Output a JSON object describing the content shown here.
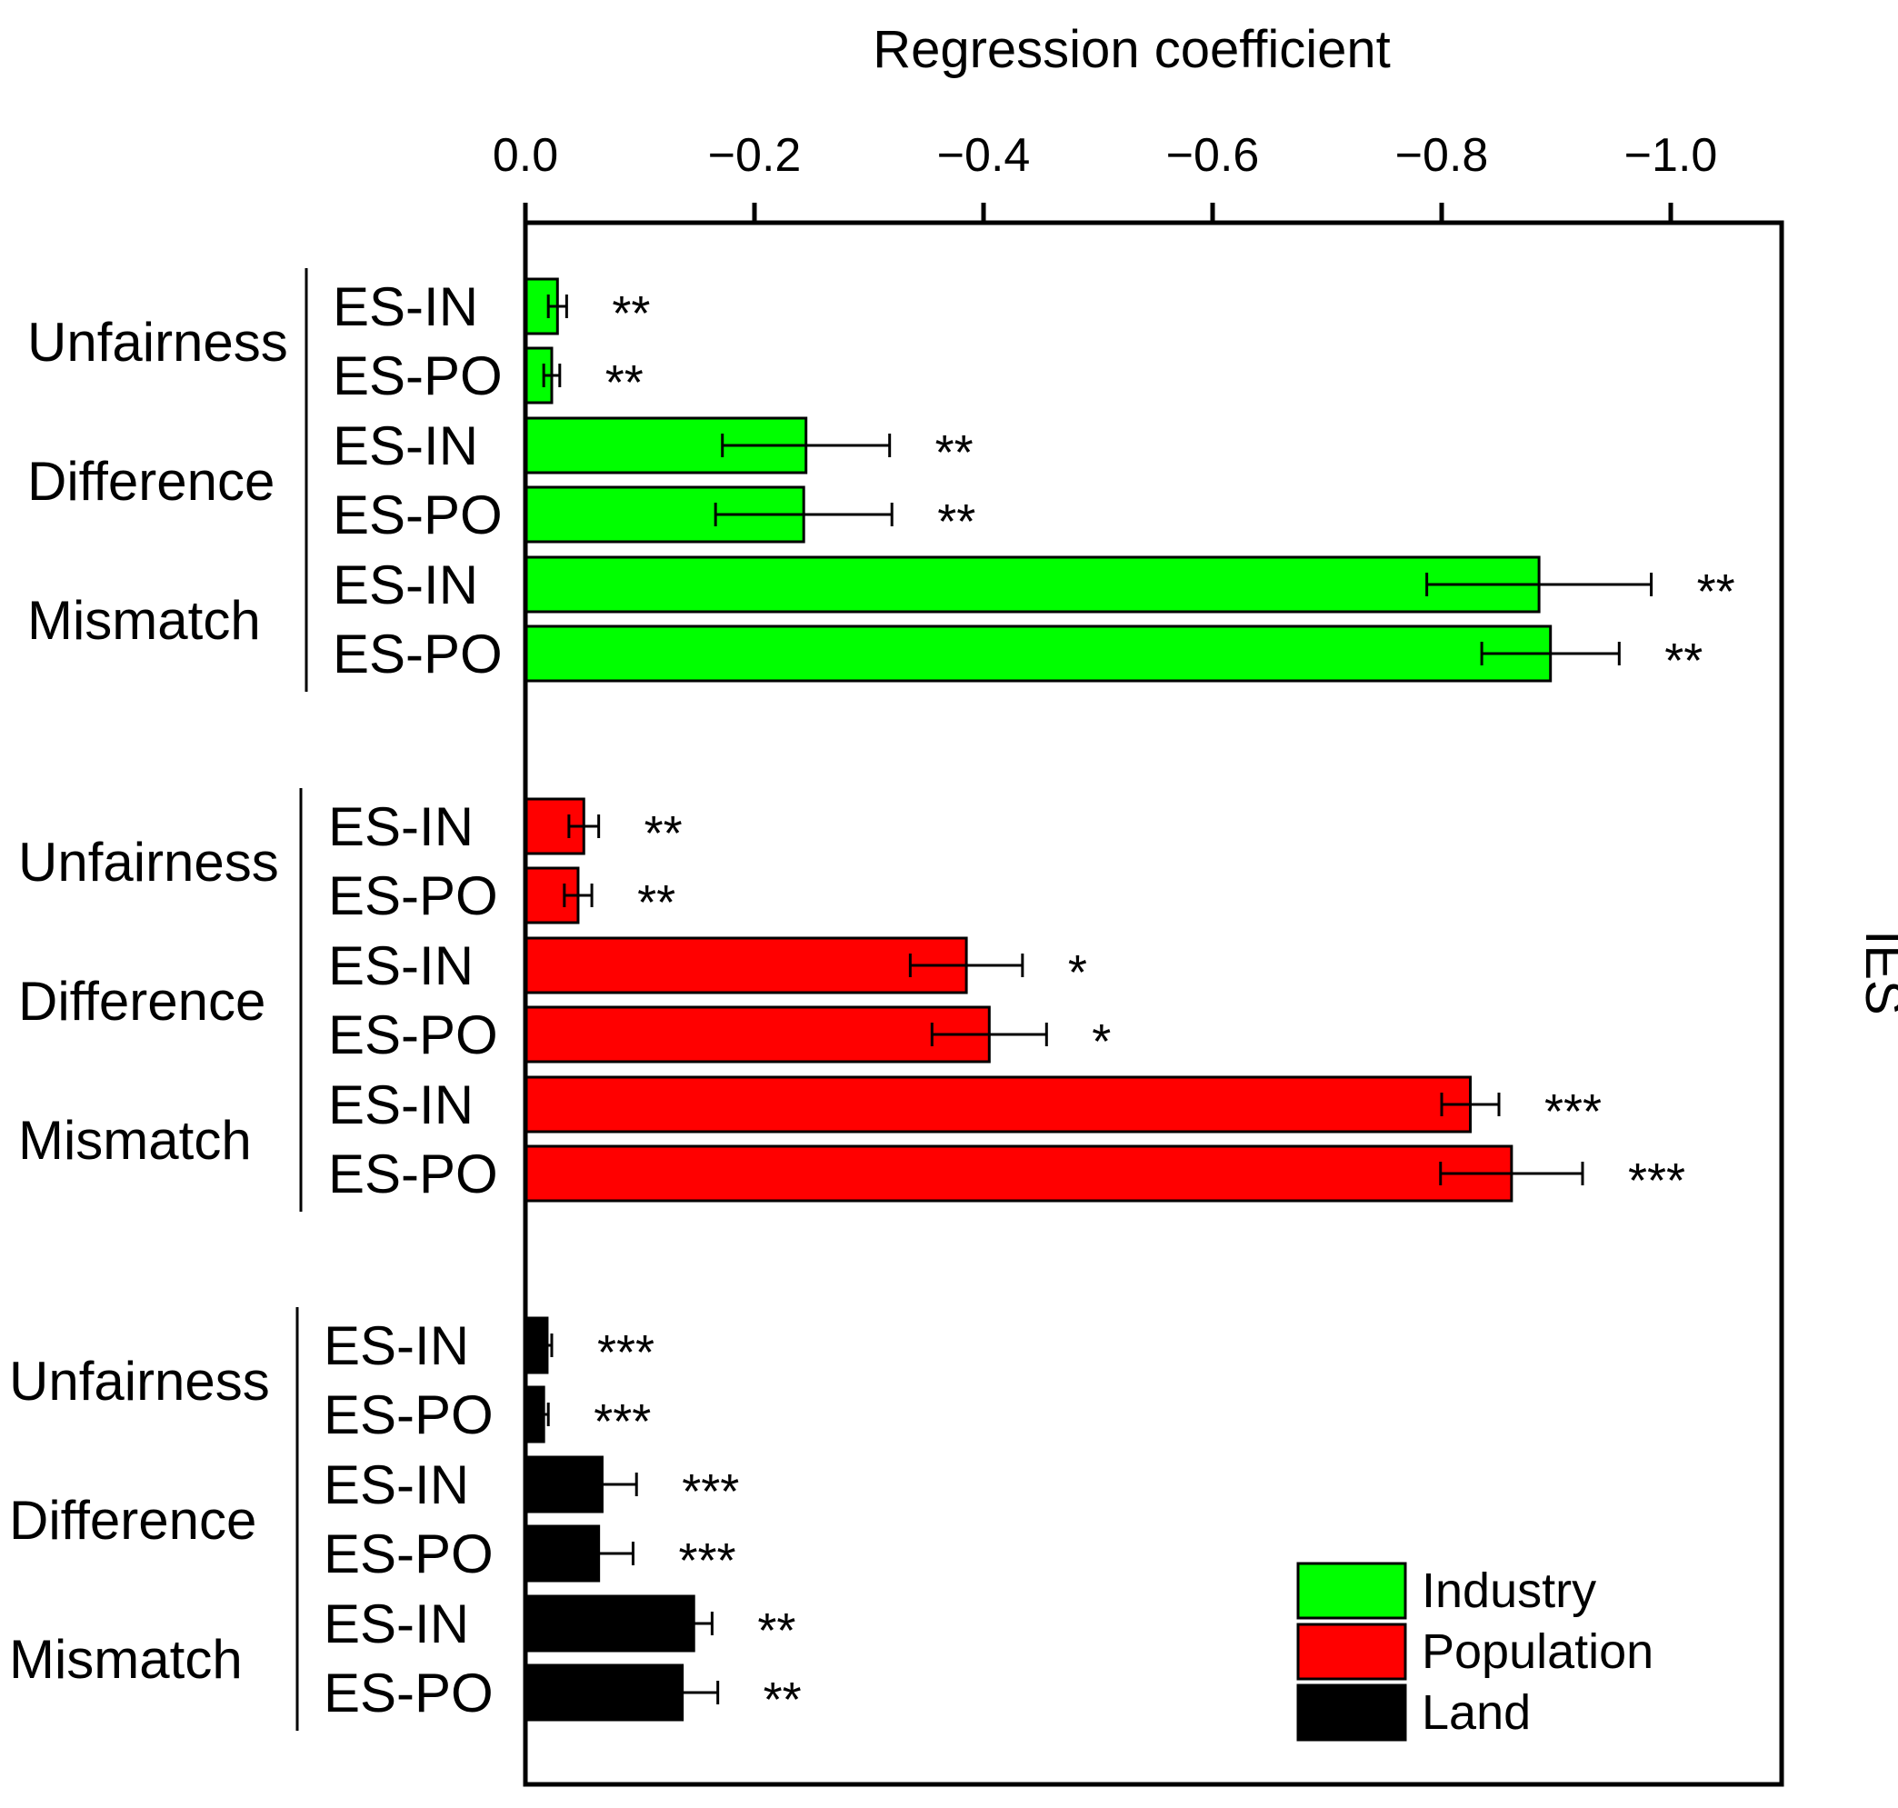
{
  "chart_data": {
    "type": "bar",
    "orientation": "horizontal",
    "title": "",
    "xlabel": "Regression coefficient",
    "ylabel": "IES",
    "xlim": [
      0.0,
      -1.1
    ],
    "xticks": [
      "0.0",
      "−0.2",
      "−0.4",
      "−0.6",
      "−0.8",
      "−1.0"
    ],
    "xtick_values": [
      0.0,
      -0.2,
      -0.4,
      -0.6,
      -0.8,
      -1.0
    ],
    "grid": false,
    "legend_position": "bottom-right",
    "groups": [
      {
        "series": "Industry",
        "color": "#00ff00",
        "measures": [
          {
            "name": "Unfairness",
            "bars": [
              {
                "label": "ES-IN",
                "value": -0.028,
                "error": 0.008,
                "sig": "**"
              },
              {
                "label": "ES-PO",
                "value": -0.023,
                "error": 0.007,
                "sig": "**"
              }
            ]
          },
          {
            "name": "Difference",
            "bars": [
              {
                "label": "ES-IN",
                "value": -0.245,
                "error": 0.073,
                "sig": "**"
              },
              {
                "label": "ES-PO",
                "value": -0.243,
                "error": 0.077,
                "sig": "**"
              }
            ]
          },
          {
            "name": "Mismatch",
            "bars": [
              {
                "label": "ES-IN",
                "value": -0.885,
                "error": 0.098,
                "sig": "**"
              },
              {
                "label": "ES-PO",
                "value": -0.895,
                "error": 0.06,
                "sig": "**"
              }
            ]
          }
        ]
      },
      {
        "series": "Population",
        "color": "#ff0000",
        "measures": [
          {
            "name": "Unfairness",
            "bars": [
              {
                "label": "ES-IN",
                "value": -0.051,
                "error": 0.013,
                "sig": "**"
              },
              {
                "label": "ES-PO",
                "value": -0.046,
                "error": 0.012,
                "sig": "**"
              }
            ]
          },
          {
            "name": "Difference",
            "bars": [
              {
                "label": "ES-IN",
                "value": -0.385,
                "error": 0.049,
                "sig": "*"
              },
              {
                "label": "ES-PO",
                "value": -0.405,
                "error": 0.05,
                "sig": "*"
              }
            ]
          },
          {
            "name": "Mismatch",
            "bars": [
              {
                "label": "ES-IN",
                "value": -0.825,
                "error": 0.025,
                "sig": "***"
              },
              {
                "label": "ES-PO",
                "value": -0.861,
                "error": 0.062,
                "sig": "***"
              }
            ]
          }
        ]
      },
      {
        "series": "Land",
        "color": "#000000",
        "measures": [
          {
            "name": "Unfairness",
            "bars": [
              {
                "label": "ES-IN",
                "value": -0.019,
                "error": 0.004,
                "sig": "***"
              },
              {
                "label": "ES-PO",
                "value": -0.016,
                "error": 0.004,
                "sig": "***"
              }
            ]
          },
          {
            "name": "Difference",
            "bars": [
              {
                "label": "ES-IN",
                "value": -0.067,
                "error": 0.03,
                "sig": "***"
              },
              {
                "label": "ES-PO",
                "value": -0.064,
                "error": 0.03,
                "sig": "***"
              }
            ]
          },
          {
            "name": "Mismatch",
            "bars": [
              {
                "label": "ES-IN",
                "value": -0.147,
                "error": 0.016,
                "sig": "**"
              },
              {
                "label": "ES-PO",
                "value": -0.137,
                "error": 0.031,
                "sig": "**"
              }
            ]
          }
        ]
      }
    ],
    "legend": [
      {
        "label": "Industry",
        "color": "#00ff00"
      },
      {
        "label": "Population",
        "color": "#ff0000"
      },
      {
        "label": "Land",
        "color": "#000000"
      }
    ]
  }
}
